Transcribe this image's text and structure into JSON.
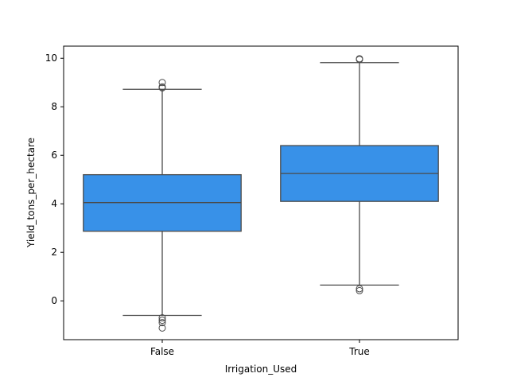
{
  "chart_data": {
    "type": "boxplot",
    "title": "",
    "xlabel": "Irrigation_Used",
    "ylabel": "Yield_tons_per_hectare",
    "ylim": [
      -1.6,
      10.5
    ],
    "yticks": [
      0,
      2,
      4,
      6,
      8,
      10
    ],
    "grid": false,
    "legend": "none",
    "box_color": "#3891e8",
    "line_color": "#4a4a4a",
    "categories": [
      "False",
      "True"
    ],
    "boxes": [
      {
        "category": "False",
        "whisker_low": -0.6,
        "q1": 2.87,
        "median": 4.05,
        "q3": 5.2,
        "whisker_high": 8.72,
        "outliers": [
          8.78,
          8.82,
          9.0,
          -0.7,
          -0.8,
          -0.9,
          -1.12
        ]
      },
      {
        "category": "True",
        "whisker_low": 0.65,
        "q1": 4.1,
        "median": 5.25,
        "q3": 6.4,
        "whisker_high": 9.82,
        "outliers": [
          9.95,
          9.98,
          0.5,
          0.42
        ]
      }
    ]
  }
}
